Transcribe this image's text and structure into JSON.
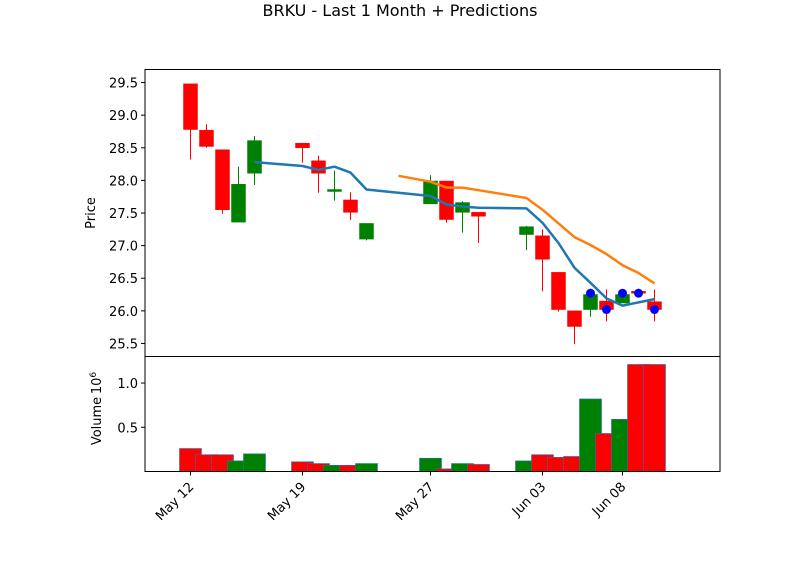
{
  "title": "BRKU - Last 1 Month + Predictions",
  "price_axis_label": "Price",
  "volume_axis_label": "Volume",
  "volume_multiplier_base": "10",
  "volume_multiplier_exp": "6",
  "colors": {
    "up": "#008000",
    "down": "#ff0000",
    "ma_short": "#1f77b4",
    "ma_long": "#ff7f0e",
    "prediction_marker": "#0000ff"
  },
  "chart_data": [
    {
      "type": "candlestick",
      "title": "BRKU - Last 1 Month + Predictions",
      "ylabel": "Price",
      "ylim": [
        25.3,
        29.7
      ],
      "yticks": [
        25.5,
        26.0,
        26.5,
        27.0,
        27.5,
        28.0,
        28.5,
        29.0,
        29.5
      ],
      "xtick_labels": [
        {
          "label": "May 12",
          "date": "2025-05-12"
        },
        {
          "label": "May 19",
          "date": "2025-05-19"
        },
        {
          "label": "May 27",
          "date": "2025-05-27"
        },
        {
          "label": "Jun 03",
          "date": "2025-06-03"
        },
        {
          "label": "Jun 08",
          "date": "2025-06-08"
        }
      ],
      "candles": [
        {
          "date": "2025-05-12",
          "open": 29.48,
          "high": 29.48,
          "low": 28.32,
          "close": 28.78
        },
        {
          "date": "2025-05-13",
          "open": 28.77,
          "high": 28.86,
          "low": 28.5,
          "close": 28.52
        },
        {
          "date": "2025-05-14",
          "open": 28.47,
          "high": 28.47,
          "low": 27.49,
          "close": 27.55
        },
        {
          "date": "2025-05-15",
          "open": 27.36,
          "high": 28.21,
          "low": 27.36,
          "close": 27.94
        },
        {
          "date": "2025-05-16",
          "open": 28.11,
          "high": 28.68,
          "low": 27.93,
          "close": 28.61
        },
        {
          "date": "2025-05-19",
          "open": 28.57,
          "high": 28.57,
          "low": 28.27,
          "close": 28.5
        },
        {
          "date": "2025-05-20",
          "open": 28.3,
          "high": 28.38,
          "low": 27.81,
          "close": 28.11
        },
        {
          "date": "2025-05-21",
          "open": 27.83,
          "high": 28.15,
          "low": 27.69,
          "close": 27.86
        },
        {
          "date": "2025-05-22",
          "open": 27.7,
          "high": 27.82,
          "low": 27.39,
          "close": 27.51
        },
        {
          "date": "2025-05-23",
          "open": 27.1,
          "high": 27.34,
          "low": 27.08,
          "close": 27.34
        },
        {
          "date": "2025-05-27",
          "open": 27.64,
          "high": 28.08,
          "low": 27.64,
          "close": 27.99
        },
        {
          "date": "2025-05-28",
          "open": 27.99,
          "high": 27.99,
          "low": 27.35,
          "close": 27.4
        },
        {
          "date": "2025-05-29",
          "open": 27.51,
          "high": 27.68,
          "low": 27.2,
          "close": 27.66
        },
        {
          "date": "2025-05-30",
          "open": 27.51,
          "high": 27.51,
          "low": 27.04,
          "close": 27.45
        },
        {
          "date": "2025-06-02",
          "open": 27.17,
          "high": 27.3,
          "low": 26.93,
          "close": 27.29
        },
        {
          "date": "2025-06-03",
          "open": 27.15,
          "high": 27.25,
          "low": 26.3,
          "close": 26.79
        },
        {
          "date": "2025-06-04",
          "open": 26.59,
          "high": 26.59,
          "low": 25.99,
          "close": 26.02
        },
        {
          "date": "2025-06-05",
          "open": 26.0,
          "high": 26.0,
          "low": 25.49,
          "close": 25.76
        },
        {
          "date": "2025-06-06",
          "open": 26.02,
          "high": 26.34,
          "low": 25.91,
          "close": 26.25
        },
        {
          "date": "2025-06-07",
          "open": 26.15,
          "high": 26.33,
          "low": 25.84,
          "close": 26.02
        },
        {
          "date": "2025-06-08",
          "open": 26.12,
          "high": 26.32,
          "low": 26.12,
          "close": 26.25
        },
        {
          "date": "2025-06-09",
          "open": 26.3,
          "high": 26.34,
          "low": 26.22,
          "close": 26.27
        },
        {
          "date": "2025-06-10",
          "open": 26.14,
          "high": 26.33,
          "low": 25.84,
          "close": 26.02
        }
      ],
      "moving_averages": [
        {
          "name": "short",
          "color": "#1f77b4",
          "points": [
            {
              "date": "2025-05-16",
              "value": 28.28
            },
            {
              "date": "2025-05-19",
              "value": 28.22
            },
            {
              "date": "2025-05-20",
              "value": 28.16
            },
            {
              "date": "2025-05-21",
              "value": 28.21
            },
            {
              "date": "2025-05-22",
              "value": 28.12
            },
            {
              "date": "2025-05-23",
              "value": 27.86
            },
            {
              "date": "2025-05-27",
              "value": 27.76
            },
            {
              "date": "2025-05-28",
              "value": 27.63
            },
            {
              "date": "2025-05-29",
              "value": 27.6
            },
            {
              "date": "2025-05-30",
              "value": 27.58
            },
            {
              "date": "2025-06-02",
              "value": 27.57
            },
            {
              "date": "2025-06-03",
              "value": 27.35
            },
            {
              "date": "2025-06-04",
              "value": 27.04
            },
            {
              "date": "2025-06-05",
              "value": 26.66
            },
            {
              "date": "2025-06-06",
              "value": 26.43
            },
            {
              "date": "2025-06-07",
              "value": 26.19
            },
            {
              "date": "2025-06-08",
              "value": 26.08
            },
            {
              "date": "2025-06-09",
              "value": 26.13
            },
            {
              "date": "2025-06-10",
              "value": 26.18
            }
          ]
        },
        {
          "name": "long",
          "color": "#ff7f0e",
          "points": [
            {
              "date": "2025-05-25",
              "value": 28.07
            },
            {
              "date": "2025-05-27",
              "value": 27.98
            },
            {
              "date": "2025-05-28",
              "value": 27.89
            },
            {
              "date": "2025-05-29",
              "value": 27.89
            },
            {
              "date": "2025-05-30",
              "value": 27.85
            },
            {
              "date": "2025-06-02",
              "value": 27.73
            },
            {
              "date": "2025-06-03",
              "value": 27.55
            },
            {
              "date": "2025-06-04",
              "value": 27.34
            },
            {
              "date": "2025-06-05",
              "value": 27.13
            },
            {
              "date": "2025-06-06",
              "value": 27.01
            },
            {
              "date": "2025-06-07",
              "value": 26.87
            },
            {
              "date": "2025-06-08",
              "value": 26.7
            },
            {
              "date": "2025-06-09",
              "value": 26.58
            },
            {
              "date": "2025-06-10",
              "value": 26.42
            }
          ]
        }
      ],
      "prediction_markers": [
        {
          "date": "2025-06-06",
          "value": 26.27
        },
        {
          "date": "2025-06-07",
          "value": 26.02
        },
        {
          "date": "2025-06-08",
          "value": 26.27
        },
        {
          "date": "2025-06-09",
          "value": 26.27
        },
        {
          "date": "2025-06-10",
          "value": 26.02
        }
      ]
    },
    {
      "type": "bar",
      "ylabel": "Volume",
      "multiplier": "1e6",
      "ylim": [
        0,
        1.3
      ],
      "yticks": [
        0.5,
        1.0
      ],
      "bars": [
        {
          "date": "2025-05-12",
          "value": 0.26,
          "direction": "down"
        },
        {
          "date": "2025-05-13",
          "value": 0.19,
          "direction": "down"
        },
        {
          "date": "2025-05-14",
          "value": 0.19,
          "direction": "down"
        },
        {
          "date": "2025-05-15",
          "value": 0.12,
          "direction": "up"
        },
        {
          "date": "2025-05-16",
          "value": 0.2,
          "direction": "up"
        },
        {
          "date": "2025-05-19",
          "value": 0.11,
          "direction": "down"
        },
        {
          "date": "2025-05-20",
          "value": 0.09,
          "direction": "down"
        },
        {
          "date": "2025-05-21",
          "value": 0.07,
          "direction": "up"
        },
        {
          "date": "2025-05-22",
          "value": 0.07,
          "direction": "down"
        },
        {
          "date": "2025-05-23",
          "value": 0.09,
          "direction": "up"
        },
        {
          "date": "2025-05-27",
          "value": 0.15,
          "direction": "up"
        },
        {
          "date": "2025-05-28",
          "value": 0.03,
          "direction": "down"
        },
        {
          "date": "2025-05-29",
          "value": 0.09,
          "direction": "up"
        },
        {
          "date": "2025-05-30",
          "value": 0.08,
          "direction": "down"
        },
        {
          "date": "2025-06-02",
          "value": 0.12,
          "direction": "up"
        },
        {
          "date": "2025-06-03",
          "value": 0.19,
          "direction": "down"
        },
        {
          "date": "2025-06-04",
          "value": 0.16,
          "direction": "down"
        },
        {
          "date": "2025-06-05",
          "value": 0.17,
          "direction": "down"
        },
        {
          "date": "2025-06-06",
          "value": 0.82,
          "direction": "up"
        },
        {
          "date": "2025-06-07",
          "value": 0.43,
          "direction": "down"
        },
        {
          "date": "2025-06-08",
          "value": 0.59,
          "direction": "up"
        },
        {
          "date": "2025-06-09",
          "value": 1.21,
          "direction": "down"
        },
        {
          "date": "2025-06-10",
          "value": 1.21,
          "direction": "down"
        }
      ]
    }
  ]
}
